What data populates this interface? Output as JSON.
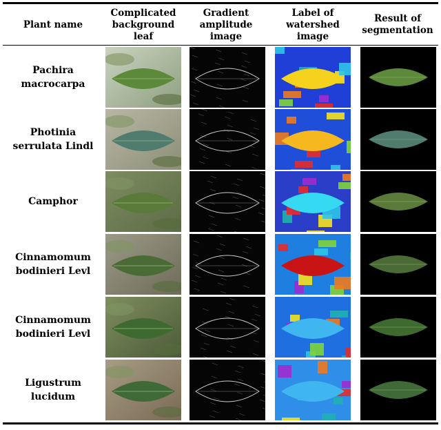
{
  "headers": {
    "plant_name": "Plant name",
    "background_leaf": "Complicated\nbackground\nleaf",
    "gradient": "Gradient\namplitude\nimage",
    "watershed": "Label of\nwatershed\nimage",
    "segmentation": "Result of\nsegmentation"
  },
  "rows": [
    {
      "name": "Pachira\nmacrocarpa",
      "watershed_leaf_color": "#f5d21e",
      "watershed_bg_color": "#1f3fd6"
    },
    {
      "name": "Photinia\nserrulata Lindl",
      "watershed_leaf_color": "#f5b81e",
      "watershed_bg_color": "#1f4fd8"
    },
    {
      "name": "Camphor",
      "watershed_leaf_color": "#35d9f2",
      "watershed_bg_color": "#2a3ec8"
    },
    {
      "name": "Cinnamomum\nbodinieri Levl",
      "watershed_leaf_color": "#c81414",
      "watershed_bg_color": "#1f7fe0"
    },
    {
      "name": "Cinnamomum\nbodinieri Levl",
      "watershed_leaf_color": "#3fb6f0",
      "watershed_bg_color": "#1f6fe0"
    },
    {
      "name": "Ligustrum\nlucidum",
      "watershed_leaf_color": "#3fb6f0",
      "watershed_bg_color": "#2f8fe8"
    }
  ]
}
